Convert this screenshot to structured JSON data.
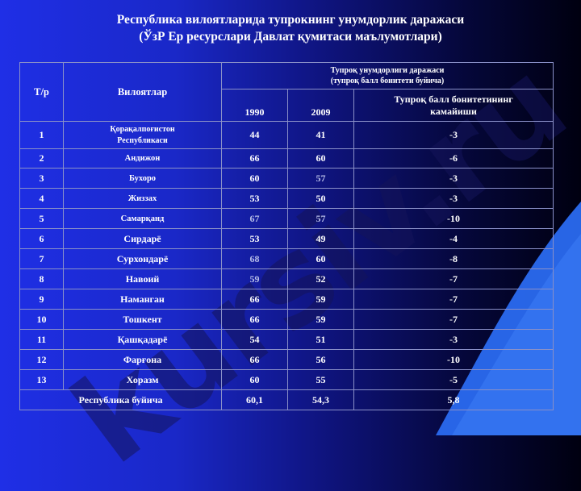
{
  "title": {
    "line1": "Республика вилоятларида тупрокнинг унумдорлик даражаси",
    "line2": "(ЎзР Ер ресурслари Давлат қумитаси маълумотлари)"
  },
  "watermark": "kursiv.ru",
  "table": {
    "headers": {
      "num": "Т/р",
      "region": "Вилоятлар",
      "group_line1": "Тупроқ унумдорлиги даражаси",
      "group_line2": "(тупроқ балл бонитети буйича)",
      "year1": "1990",
      "year2": "2009",
      "decrease_line1": "Тупроқ балл бонитетининг",
      "decrease_line2": "камайиши"
    },
    "rows": [
      {
        "n": "1",
        "region_line1": "Қорақалпоғистон",
        "region_line2": "Республикаси",
        "v1990": "44",
        "v2009": "41",
        "dec": "-3"
      },
      {
        "n": "2",
        "region": "Андижон",
        "v1990": "66",
        "v2009": "60",
        "dec": "-6"
      },
      {
        "n": "3",
        "region": "Бухоро",
        "v1990": "60",
        "v2009": "57",
        "dec": "-3"
      },
      {
        "n": "4",
        "region": "Жиззах",
        "v1990": "53",
        "v2009": "50",
        "dec": "-3"
      },
      {
        "n": "5",
        "region": "Самарқанд",
        "v1990": "67",
        "v2009": "57",
        "dec": "-10"
      },
      {
        "n": "6",
        "region": "Сирдарё",
        "v1990": "53",
        "v2009": "49",
        "dec": "-4"
      },
      {
        "n": "7",
        "region": "Сурхондарё",
        "v1990": "68",
        "v2009": "60",
        "dec": "-8"
      },
      {
        "n": "8",
        "region": "Навоий",
        "v1990": "59",
        "v2009": "52",
        "dec": "-7"
      },
      {
        "n": "9",
        "region": "Наманган",
        "v1990": "66",
        "v2009": "59",
        "dec": "-7"
      },
      {
        "n": "10",
        "region": "Тошкент",
        "v1990": "66",
        "v2009": "59",
        "dec": "-7"
      },
      {
        "n": "11",
        "region": "Қашқадарё",
        "v1990": "54",
        "v2009": "51",
        "dec": "-3"
      },
      {
        "n": "12",
        "region": "Фарғона",
        "v1990": "66",
        "v2009": "56",
        "dec": "-10"
      },
      {
        "n": "13",
        "region": "Хоразм",
        "v1990": "60",
        "v2009": "55",
        "dec": "-5"
      }
    ],
    "total": {
      "label": "Республика буйича",
      "v1990": "60,1",
      "v2009": "54,3",
      "dec": "5,8"
    }
  },
  "colors": {
    "background_left": "#1f2fe6",
    "background_right": "#000010",
    "swoosh": "#2a6af0",
    "grid": "#8a90c8"
  }
}
